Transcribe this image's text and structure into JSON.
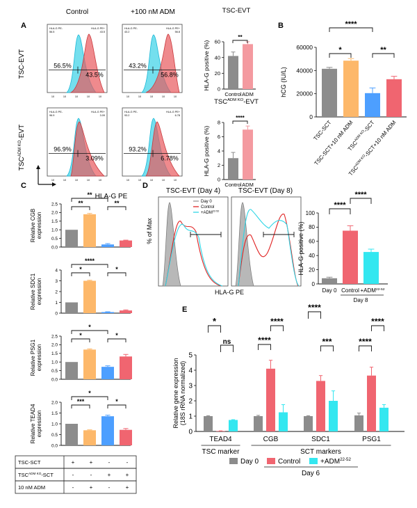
{
  "colors": {
    "grey": "#8c8c8c",
    "orange": "#fdb86a",
    "blue": "#4d9fff",
    "red": "#f06570",
    "pink": "#f49aa0",
    "cyan": "#33e7f0",
    "hist_cyan": "#45d4e8",
    "hist_red": "#e8585c",
    "hist_grey": "#b8b8b8"
  },
  "panels": {
    "a": "A",
    "b": "B",
    "c": "C",
    "d": "D",
    "e": "E"
  },
  "panel_a": {
    "col_control": "Control",
    "col_adm": "+100 nM ADM",
    "row1_label": "TSC-EVT",
    "row2_label_main": "TSC",
    "row2_label_sup": "ADM KO",
    "row2_label_end": "-EVT",
    "x_label": "HLA-G PE",
    "gate_neg": "HLA-G PE-",
    "gate_pos": "HLA-G PE+",
    "histograms": [
      {
        "left_pct": "56.5%",
        "right_pct": "43.5%",
        "corner_left": "56.5",
        "corner_right": "43.5"
      },
      {
        "left_pct": "43.2%",
        "right_pct": "56.8%",
        "corner_left": "43.2",
        "corner_right": "56.8"
      },
      {
        "left_pct": "96.9%",
        "right_pct": "3.09%",
        "corner_left": "96.9",
        "corner_right": "3.09"
      },
      {
        "left_pct": "93.2%",
        "right_pct": "6.78%",
        "corner_left": "93.2",
        "corner_right": "6.78"
      }
    ],
    "tick_labels": [
      "10",
      "10",
      "10",
      "10",
      "10"
    ]
  },
  "chart_data": [
    {
      "id": "a_top",
      "type": "bar",
      "title": "TSC-EVT",
      "ylabel": "HLA-G positive (%)",
      "categories": [
        "Control",
        "ADM"
      ],
      "values": [
        42,
        57
      ],
      "errors": [
        5,
        3
      ],
      "ylim": [
        0,
        60
      ],
      "yticks": [
        "0",
        "20",
        "40",
        "60"
      ],
      "significance": [
        "**"
      ]
    },
    {
      "id": "a_bottom",
      "type": "bar",
      "title_main": "TSC",
      "title_sup": "ADM KO",
      "title_end": "-EVT",
      "ylabel": "HLA-G positive (%)",
      "categories": [
        "Control",
        "ADM"
      ],
      "values": [
        3,
        7
      ],
      "errors": [
        0.8,
        0.5
      ],
      "ylim": [
        0,
        8
      ],
      "yticks": [
        "0",
        "2",
        "4",
        "6",
        "8"
      ],
      "significance": [
        "****"
      ]
    },
    {
      "id": "b",
      "type": "bar",
      "ylabel": "hCG (IU/L)",
      "categories": [
        "TSC-SCT",
        "TSC-SCT+10 nM ADM",
        "TSC-ADM KO-SCT",
        "TSC-ADM KO-SCT+10 nM ADM"
      ],
      "category_labels": [
        {
          "main": "TSC-SCT",
          "sup": ""
        },
        {
          "main": "TSC-SCT+10 nM ADM",
          "sup": ""
        },
        {
          "main": "TSC",
          "sup": "ADM KO",
          "end": "-SCT"
        },
        {
          "main": "TSC",
          "sup": "ADM KO",
          "end": "-SCT+10 nM ADM"
        }
      ],
      "values": [
        41500,
        48500,
        20500,
        32500
      ],
      "errors": [
        1200,
        1800,
        4500,
        2500
      ],
      "ylim": [
        0,
        60000
      ],
      "yticks": [
        "0",
        "20000",
        "40000",
        "60000"
      ],
      "significance": [
        "****",
        "*",
        "**"
      ]
    },
    {
      "id": "c",
      "type": "bar",
      "panels": [
        {
          "ylabel_1": "Relative CGB",
          "ylabel_2": "expression",
          "values": [
            1.0,
            1.9,
            0.15,
            0.38
          ],
          "errors": [
            0,
            0.05,
            0.05,
            0.02
          ],
          "ylim": [
            0,
            2.5
          ],
          "yticks": [
            "0.0",
            "0.5",
            "1.0",
            "1.5",
            "2.0",
            "2.5"
          ],
          "sig": [
            "**",
            "**",
            "**"
          ]
        },
        {
          "ylabel_1": "Relative SDC1",
          "ylabel_2": "expression",
          "values": [
            1.0,
            3.0,
            0.1,
            0.25
          ],
          "errors": [
            0,
            0.05,
            0.03,
            0.05
          ],
          "ylim": [
            0,
            4
          ],
          "yticks": [
            "0",
            "1",
            "2",
            "3",
            "4"
          ],
          "sig": [
            "****",
            "*",
            "*"
          ]
        },
        {
          "ylabel_1": "Relative PSG1",
          "ylabel_2": "expression",
          "values": [
            1.0,
            1.72,
            0.72,
            1.32
          ],
          "errors": [
            0,
            0.04,
            0.06,
            0.12
          ],
          "ylim": [
            0,
            2.5
          ],
          "yticks": [
            "0.0",
            "0.5",
            "1.0",
            "1.5",
            "2.0",
            "2.5"
          ],
          "sig": [
            "*",
            "*",
            "*"
          ]
        },
        {
          "ylabel_1": "Relative TEAD4",
          "ylabel_2": "expression",
          "values": [
            1.0,
            0.7,
            1.35,
            0.72
          ],
          "errors": [
            0,
            0.02,
            0.05,
            0.06
          ],
          "ylim": [
            0,
            2.0
          ],
          "yticks": [
            "0.0",
            "0.5",
            "1.0",
            "1.5",
            "2.0"
          ],
          "sig": [
            "*",
            "***",
            "*"
          ]
        }
      ]
    },
    {
      "id": "d_bar",
      "type": "bar",
      "ylabel": "HLA-G positive (%)",
      "categories": [
        "Day 0",
        "Control",
        "+ADM 22-52"
      ],
      "values": [
        8,
        75,
        45
      ],
      "errors": [
        1.5,
        7,
        4
      ],
      "ylim": [
        0,
        100
      ],
      "yticks": [
        "0",
        "20",
        "40",
        "60",
        "80",
        "100"
      ],
      "significance": [
        "****",
        "****"
      ]
    },
    {
      "id": "e",
      "type": "bar",
      "ylabel_1": "Relative gene expression",
      "ylabel_2": "(18S rRNA normalized)",
      "categories": [
        "TEAD4",
        "CGB",
        "SDC1",
        "PSG1"
      ],
      "series": [
        {
          "name": "Day 0",
          "values": [
            1.0,
            1.0,
            1.0,
            1.05
          ],
          "errors": [
            0.03,
            0.05,
            0.03,
            0.15
          ]
        },
        {
          "name": "Control",
          "values": [
            0.03,
            4.1,
            3.3,
            3.65
          ],
          "errors": [
            0.01,
            0.55,
            0.35,
            0.55
          ]
        },
        {
          "name": "+ADM 22-52",
          "values": [
            0.75,
            1.25,
            2.0,
            1.55
          ],
          "errors": [
            0.02,
            0.5,
            0.65,
            0.2
          ]
        }
      ],
      "ylim": [
        0,
        5
      ],
      "yticks": [
        "0",
        "1",
        "2",
        "3",
        "4",
        "5"
      ],
      "significance": [
        "*",
        "ns",
        "****",
        "****",
        "****",
        "***",
        "****",
        "****"
      ]
    }
  ],
  "panel_c_table": {
    "rows": [
      {
        "label": "TSC-SCT",
        "sup": "",
        "end": "",
        "cells": [
          "+",
          "+",
          "-",
          "-"
        ]
      },
      {
        "label": "TSC",
        "sup": "ADM KO",
        "end": "-SCT",
        "cells": [
          "-",
          "-",
          "+",
          "+"
        ]
      },
      {
        "label": "10 nM ADM",
        "sup": "",
        "end": "",
        "cells": [
          "-",
          "+",
          "-",
          "+"
        ]
      }
    ]
  },
  "panel_d": {
    "title_day4": "TSC-EVT (Day 4)",
    "title_day8": "TSC-EVT (Day 8)",
    "y_label": "% of Max",
    "x_label": "HLA-G PE",
    "legend_day0": "Day 0",
    "legend_control": "Control",
    "legend_adm_main": "+ADM",
    "legend_adm_sup": "22-52",
    "bar_x_day0": "Day 0",
    "bar_x_control": "Control",
    "bar_x_adm_main": "+ADM",
    "bar_x_adm_sup": "22-52",
    "bar_group": "Day 8"
  },
  "panel_e": {
    "tsc_marker": "TSC marker",
    "sct_markers": "SCT markers",
    "legend_day0": "Day 0",
    "legend_control": "Control",
    "legend_adm_main": "+ADM",
    "legend_adm_sup": "22-52",
    "legend_group": "Day 6"
  }
}
